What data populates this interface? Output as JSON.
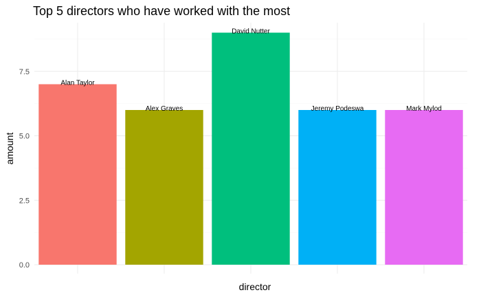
{
  "chart_data": {
    "type": "bar",
    "title": "Top 5 directors who have worked with the most",
    "xlabel": "director",
    "ylabel": "amount",
    "categories": [
      "Alan Taylor",
      "Alex Graves",
      "David Nutter",
      "Jeremy Podeswa",
      "Mark Mylod"
    ],
    "values": [
      7,
      6,
      9,
      6,
      6
    ],
    "data_labels": [
      "Alan Taylor",
      "Alex Graves",
      "David Nutter",
      "Jeremy Podeswa",
      "Mark Mylod"
    ],
    "colors": [
      "#F8766D",
      "#A3A500",
      "#00BF7D",
      "#00B0F6",
      "#E76BF3"
    ],
    "ylim": [
      0,
      9.45
    ],
    "yticks": [
      0,
      2.5,
      5,
      7.5
    ],
    "ytick_labels": [
      "0.0",
      "2.5",
      "5.0",
      "7.5"
    ],
    "x_tick_labels_shown": false,
    "grid": true,
    "legend": "none"
  }
}
